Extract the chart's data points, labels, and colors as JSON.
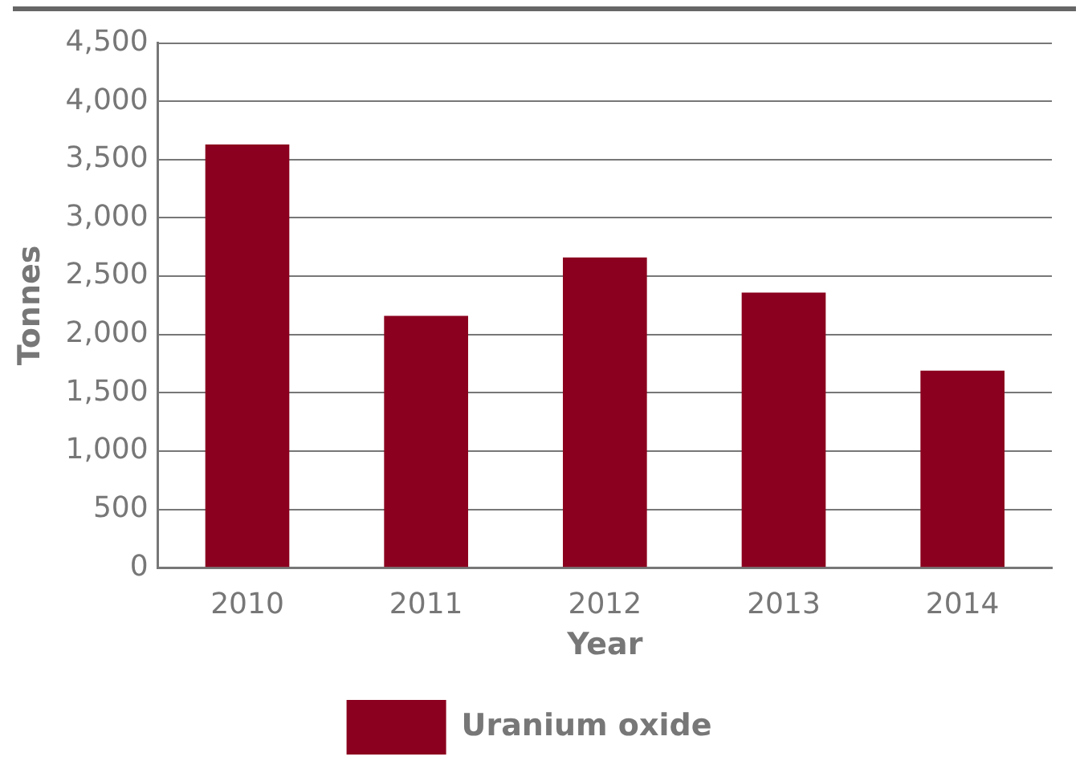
{
  "chart_data": {
    "type": "bar",
    "xlabel": "Year",
    "ylabel": "Tonnes",
    "categories": [
      "2010",
      "2011",
      "2012",
      "2013",
      "2014"
    ],
    "series": [
      {
        "name": "Uranium oxide",
        "color": "#8b001e",
        "values": [
          3630,
          2160,
          2660,
          2360,
          1690
        ]
      }
    ],
    "ylim": [
      0,
      4500
    ],
    "yticks": [
      {
        "value": 0,
        "label": "0"
      },
      {
        "value": 500,
        "label": "500"
      },
      {
        "value": 1000,
        "label": "1,000"
      },
      {
        "value": 1500,
        "label": "1,500"
      },
      {
        "value": 2000,
        "label": "2,000"
      },
      {
        "value": 2500,
        "label": "2,500"
      },
      {
        "value": 3000,
        "label": "3,000"
      },
      {
        "value": 3500,
        "label": "3,500"
      },
      {
        "value": 4000,
        "label": "4,000"
      },
      {
        "value": 4500,
        "label": "4,500"
      }
    ],
    "grid": "y",
    "legend": "bottom"
  }
}
